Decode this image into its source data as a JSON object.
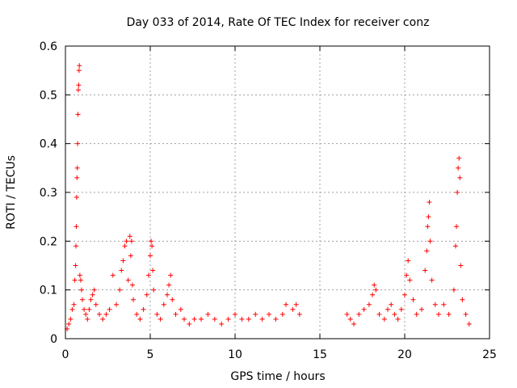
{
  "chart_data": {
    "type": "scatter",
    "title": "Day 033 of 2014, Rate Of TEC Index for receiver conz",
    "xlabel": "GPS time / hours",
    "ylabel": "ROTI / TECUs",
    "xlim": [
      0,
      25
    ],
    "ylim": [
      0,
      0.6
    ],
    "xticks": [
      0,
      5,
      10,
      15,
      20,
      25
    ],
    "yticks": [
      0,
      0.1,
      0.2,
      0.3,
      0.4,
      0.5,
      0.6
    ],
    "xtick_labels": [
      "0",
      "5",
      "10",
      "15",
      "20",
      "25"
    ],
    "ytick_labels": [
      "0",
      "0.1",
      "0.2",
      "0.3",
      "0.4",
      "0.5",
      "0.6"
    ],
    "grid": true,
    "marker": "plus",
    "color": "#ff0000",
    "series": [
      {
        "points": [
          [
            0.1,
            0.02
          ],
          [
            0.2,
            0.03
          ],
          [
            0.3,
            0.04
          ],
          [
            0.4,
            0.06
          ],
          [
            0.5,
            0.07
          ],
          [
            0.55,
            0.12
          ],
          [
            0.6,
            0.15
          ],
          [
            0.62,
            0.19
          ],
          [
            0.64,
            0.23
          ],
          [
            0.66,
            0.29
          ],
          [
            0.68,
            0.33
          ],
          [
            0.7,
            0.35
          ],
          [
            0.72,
            0.4
          ],
          [
            0.74,
            0.46
          ],
          [
            0.76,
            0.51
          ],
          [
            0.78,
            0.52
          ],
          [
            0.8,
            0.55
          ],
          [
            0.82,
            0.56
          ],
          [
            0.85,
            0.13
          ],
          [
            0.9,
            0.12
          ],
          [
            0.95,
            0.1
          ],
          [
            1.0,
            0.08
          ],
          [
            1.1,
            0.06
          ],
          [
            1.2,
            0.05
          ],
          [
            1.3,
            0.04
          ],
          [
            1.4,
            0.06
          ],
          [
            1.5,
            0.08
          ],
          [
            1.6,
            0.09
          ],
          [
            1.7,
            0.1
          ],
          [
            1.8,
            0.07
          ],
          [
            2.0,
            0.05
          ],
          [
            2.2,
            0.04
          ],
          [
            2.4,
            0.05
          ],
          [
            2.6,
            0.06
          ],
          [
            2.8,
            0.13
          ],
          [
            3.0,
            0.07
          ],
          [
            3.2,
            0.1
          ],
          [
            3.3,
            0.14
          ],
          [
            3.4,
            0.16
          ],
          [
            3.5,
            0.19
          ],
          [
            3.6,
            0.2
          ],
          [
            3.7,
            0.12
          ],
          [
            3.8,
            0.21
          ],
          [
            3.85,
            0.17
          ],
          [
            3.9,
            0.2
          ],
          [
            3.95,
            0.11
          ],
          [
            4.0,
            0.08
          ],
          [
            4.2,
            0.05
          ],
          [
            4.4,
            0.04
          ],
          [
            4.6,
            0.06
          ],
          [
            4.8,
            0.09
          ],
          [
            4.9,
            0.13
          ],
          [
            5.0,
            0.17
          ],
          [
            5.05,
            0.2
          ],
          [
            5.1,
            0.19
          ],
          [
            5.15,
            0.14
          ],
          [
            5.2,
            0.1
          ],
          [
            5.4,
            0.05
          ],
          [
            5.6,
            0.04
          ],
          [
            5.8,
            0.07
          ],
          [
            6.0,
            0.09
          ],
          [
            6.1,
            0.11
          ],
          [
            6.2,
            0.13
          ],
          [
            6.3,
            0.08
          ],
          [
            6.5,
            0.05
          ],
          [
            6.8,
            0.06
          ],
          [
            7.0,
            0.04
          ],
          [
            7.3,
            0.03
          ],
          [
            7.6,
            0.04
          ],
          [
            8.0,
            0.04
          ],
          [
            8.4,
            0.05
          ],
          [
            8.8,
            0.04
          ],
          [
            9.2,
            0.03
          ],
          [
            9.6,
            0.04
          ],
          [
            10.0,
            0.05
          ],
          [
            10.4,
            0.04
          ],
          [
            10.8,
            0.04
          ],
          [
            11.2,
            0.05
          ],
          [
            11.6,
            0.04
          ],
          [
            12.0,
            0.05
          ],
          [
            12.4,
            0.04
          ],
          [
            12.8,
            0.05
          ],
          [
            13.0,
            0.07
          ],
          [
            13.4,
            0.06
          ],
          [
            13.6,
            0.07
          ],
          [
            13.8,
            0.05
          ],
          [
            16.6,
            0.05
          ],
          [
            16.8,
            0.04
          ],
          [
            17.0,
            0.03
          ],
          [
            17.3,
            0.05
          ],
          [
            17.6,
            0.06
          ],
          [
            17.9,
            0.07
          ],
          [
            18.1,
            0.09
          ],
          [
            18.2,
            0.11
          ],
          [
            18.3,
            0.1
          ],
          [
            18.5,
            0.05
          ],
          [
            18.8,
            0.04
          ],
          [
            19.0,
            0.06
          ],
          [
            19.2,
            0.07
          ],
          [
            19.4,
            0.05
          ],
          [
            19.6,
            0.04
          ],
          [
            19.8,
            0.06
          ],
          [
            20.0,
            0.09
          ],
          [
            20.1,
            0.13
          ],
          [
            20.2,
            0.16
          ],
          [
            20.3,
            0.12
          ],
          [
            20.5,
            0.08
          ],
          [
            20.7,
            0.05
          ],
          [
            21.0,
            0.06
          ],
          [
            21.2,
            0.14
          ],
          [
            21.3,
            0.18
          ],
          [
            21.35,
            0.23
          ],
          [
            21.4,
            0.25
          ],
          [
            21.45,
            0.28
          ],
          [
            21.5,
            0.2
          ],
          [
            21.6,
            0.12
          ],
          [
            21.8,
            0.07
          ],
          [
            22.0,
            0.05
          ],
          [
            22.3,
            0.07
          ],
          [
            22.6,
            0.05
          ],
          [
            22.9,
            0.1
          ],
          [
            23.0,
            0.19
          ],
          [
            23.05,
            0.23
          ],
          [
            23.1,
            0.3
          ],
          [
            23.15,
            0.35
          ],
          [
            23.2,
            0.37
          ],
          [
            23.25,
            0.33
          ],
          [
            23.3,
            0.15
          ],
          [
            23.4,
            0.08
          ],
          [
            23.6,
            0.05
          ],
          [
            23.8,
            0.03
          ]
        ]
      }
    ]
  }
}
